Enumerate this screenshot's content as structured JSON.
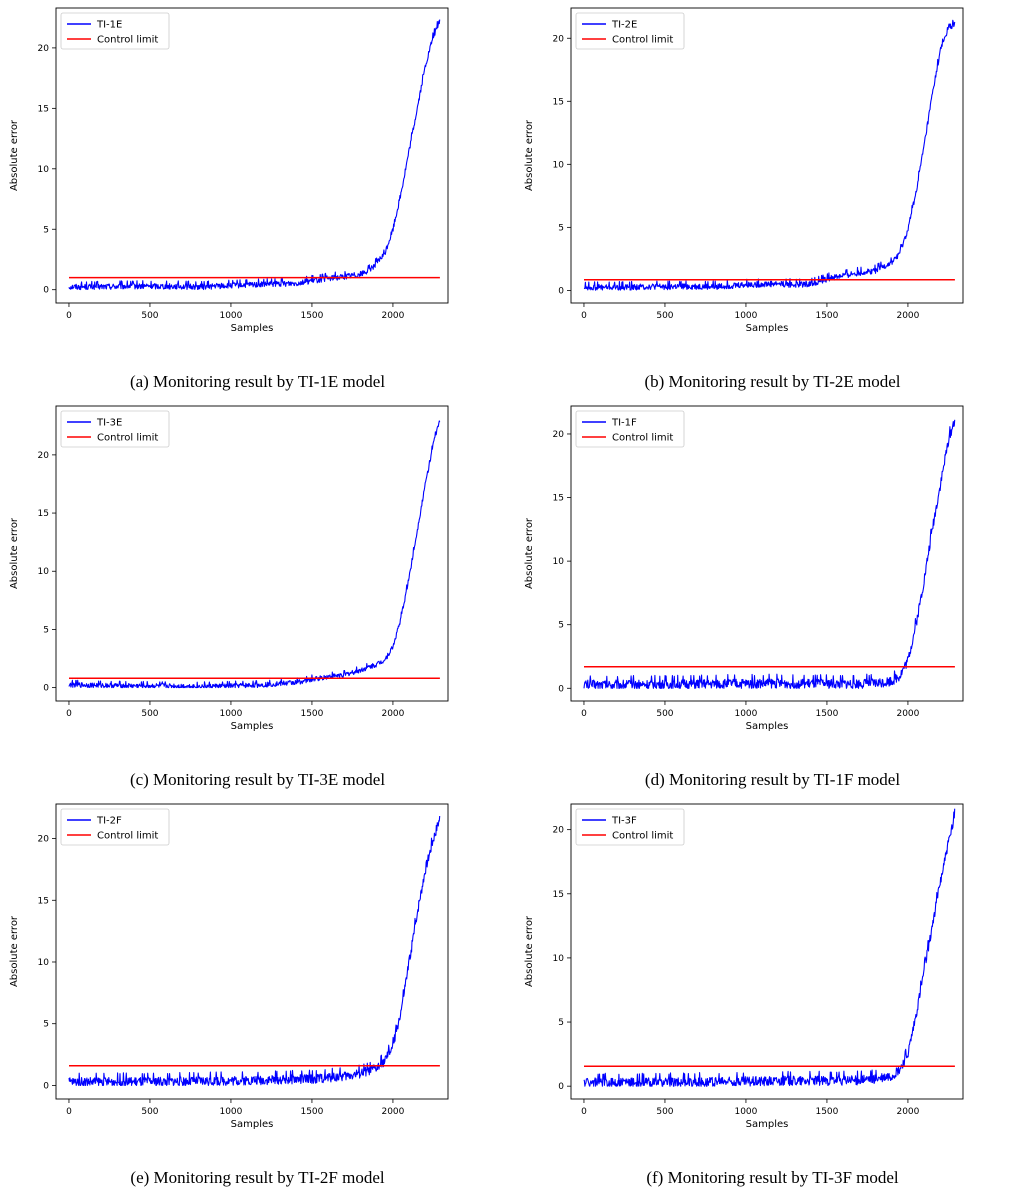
{
  "chart_data": [
    {
      "type": "line",
      "caption": "(a)  Monitoring result by TI-1E model",
      "xlabel": "Samples",
      "ylabel": "Absolute error",
      "xlim": [
        -80,
        2340
      ],
      "ylim": [
        -1.1,
        23.3
      ],
      "xticks": [
        0,
        500,
        1000,
        1500,
        2000
      ],
      "yticks": [
        0,
        5,
        10,
        15,
        20
      ],
      "grid": false,
      "legend_position": "upper-left",
      "series": [
        {
          "name": "TI-1E",
          "color": "#0000ff",
          "x": [
            0,
            200,
            400,
            600,
            800,
            1000,
            1200,
            1400,
            1500,
            1600,
            1700,
            1800,
            1850,
            1900,
            1950,
            2000,
            2050,
            2100,
            2150,
            2200,
            2250,
            2290
          ],
          "y": [
            0.25,
            0.25,
            0.3,
            0.3,
            0.25,
            0.35,
            0.45,
            0.55,
            0.75,
            0.95,
            1.1,
            1.3,
            1.6,
            2.2,
            3.0,
            5.0,
            8.0,
            11.5,
            15.0,
            18.5,
            21.0,
            22.3
          ],
          "noise": 0.25
        },
        {
          "name": "Control limit",
          "color": "#ff0000",
          "x": [
            0,
            2290
          ],
          "y": [
            1.0,
            1.0
          ]
        }
      ]
    },
    {
      "type": "line",
      "caption": "(b) Monitoring result by TI-2E model",
      "xlabel": "Samples",
      "ylabel": "Absolute error",
      "xlim": [
        -80,
        2340
      ],
      "ylim": [
        -1.0,
        22.4
      ],
      "xticks": [
        0,
        500,
        1000,
        1500,
        2000
      ],
      "yticks": [
        0,
        5,
        10,
        15,
        20
      ],
      "grid": false,
      "legend_position": "upper-left",
      "series": [
        {
          "name": "TI-2E",
          "color": "#0000ff",
          "x": [
            0,
            200,
            400,
            600,
            800,
            1000,
            1200,
            1300,
            1400,
            1500,
            1600,
            1700,
            1800,
            1900,
            1950,
            2000,
            2050,
            2100,
            2150,
            2200,
            2250,
            2290
          ],
          "y": [
            0.25,
            0.25,
            0.3,
            0.3,
            0.3,
            0.45,
            0.55,
            0.45,
            0.55,
            0.9,
            1.2,
            1.4,
            1.6,
            2.2,
            3.0,
            4.8,
            7.8,
            11.5,
            15.5,
            19.0,
            20.9,
            21.1
          ],
          "noise": 0.25
        },
        {
          "name": "Control limit",
          "color": "#ff0000",
          "x": [
            0,
            2290
          ],
          "y": [
            0.85,
            0.85
          ]
        }
      ]
    },
    {
      "type": "line",
      "caption": "(c)  Monitoring result by TI-3E model",
      "xlabel": "Samples",
      "ylabel": "Absolute error",
      "xlim": [
        -80,
        2340
      ],
      "ylim": [
        -1.15,
        24.2
      ],
      "xticks": [
        0,
        500,
        1000,
        1500,
        2000
      ],
      "yticks": [
        0,
        5,
        10,
        15,
        20
      ],
      "grid": false,
      "legend_position": "upper-left",
      "series": [
        {
          "name": "TI-3E",
          "color": "#0000ff",
          "x": [
            0,
            200,
            400,
            600,
            800,
            1000,
            1200,
            1400,
            1500,
            1600,
            1700,
            1800,
            1900,
            1950,
            2000,
            2050,
            2100,
            2150,
            2200,
            2250,
            2290
          ],
          "y": [
            0.25,
            0.2,
            0.15,
            0.15,
            0.1,
            0.15,
            0.25,
            0.45,
            0.7,
            0.95,
            1.1,
            1.5,
            2.0,
            2.4,
            3.5,
            6.0,
            9.5,
            13.5,
            17.5,
            21.0,
            23.0
          ],
          "noise": 0.22
        },
        {
          "name": "Control limit",
          "color": "#ff0000",
          "x": [
            0,
            2290
          ],
          "y": [
            0.8,
            0.8
          ]
        }
      ]
    },
    {
      "type": "line",
      "caption": "(d) Monitoring result by TI-1F model",
      "xlabel": "Samples",
      "ylabel": "Absolute error",
      "xlim": [
        -80,
        2340
      ],
      "ylim": [
        -1.0,
        22.2
      ],
      "xticks": [
        0,
        500,
        1000,
        1500,
        2000
      ],
      "yticks": [
        0,
        5,
        10,
        15,
        20
      ],
      "grid": false,
      "legend_position": "upper-left",
      "series": [
        {
          "name": "TI-1F",
          "color": "#0000ff",
          "x": [
            0,
            400,
            800,
            1200,
            1600,
            1800,
            1900,
            1950,
            2000,
            2050,
            2100,
            2150,
            2200,
            2250,
            2290
          ],
          "y": [
            0.3,
            0.3,
            0.35,
            0.4,
            0.35,
            0.4,
            0.6,
            1.0,
            2.2,
            5.0,
            8.5,
            12.5,
            16.0,
            19.5,
            21.2
          ],
          "noise": 0.4
        },
        {
          "name": "Control limit",
          "color": "#ff0000",
          "x": [
            0,
            2290
          ],
          "y": [
            1.7,
            1.7
          ]
        }
      ]
    },
    {
      "type": "line",
      "caption": "(e)  Monitoring result by TI-2F model",
      "xlabel": "Samples",
      "ylabel": "Absolute error",
      "xlim": [
        -80,
        2340
      ],
      "ylim": [
        -1.1,
        22.8
      ],
      "xticks": [
        0,
        500,
        1000,
        1500,
        2000
      ],
      "yticks": [
        0,
        5,
        10,
        15,
        20
      ],
      "grid": false,
      "legend_position": "upper-left",
      "series": [
        {
          "name": "TI-2F",
          "color": "#0000ff",
          "x": [
            0,
            400,
            800,
            1200,
            1500,
            1700,
            1800,
            1900,
            1950,
            2000,
            2050,
            2100,
            2150,
            2200,
            2250,
            2290
          ],
          "y": [
            0.3,
            0.3,
            0.35,
            0.45,
            0.55,
            0.75,
            1.0,
            1.4,
            2.0,
            3.2,
            6.0,
            10.0,
            14.0,
            17.5,
            20.0,
            21.7
          ],
          "noise": 0.4
        },
        {
          "name": "Control limit",
          "color": "#ff0000",
          "x": [
            0,
            2290
          ],
          "y": [
            1.6,
            1.6
          ]
        }
      ]
    },
    {
      "type": "line",
      "caption": "(f) Monitoring result by TI-3F model",
      "xlabel": "Samples",
      "ylabel": "Absolute error",
      "xlim": [
        -80,
        2340
      ],
      "ylim": [
        -1.0,
        22.0
      ],
      "xticks": [
        0,
        500,
        1000,
        1500,
        2000
      ],
      "yticks": [
        0,
        5,
        10,
        15,
        20
      ],
      "grid": false,
      "legend_position": "upper-left",
      "series": [
        {
          "name": "TI-3F",
          "color": "#0000ff",
          "x": [
            0,
            400,
            800,
            1200,
            1600,
            1800,
            1900,
            1950,
            2000,
            2050,
            2100,
            2150,
            2200,
            2250,
            2290
          ],
          "y": [
            0.3,
            0.3,
            0.35,
            0.45,
            0.45,
            0.55,
            0.8,
            1.3,
            2.5,
            5.5,
            9.0,
            12.5,
            16.0,
            19.0,
            21.0
          ],
          "noise": 0.4
        },
        {
          "name": "Control limit",
          "color": "#ff0000",
          "x": [
            0,
            2290
          ],
          "y": [
            1.55,
            1.55
          ]
        }
      ]
    }
  ]
}
